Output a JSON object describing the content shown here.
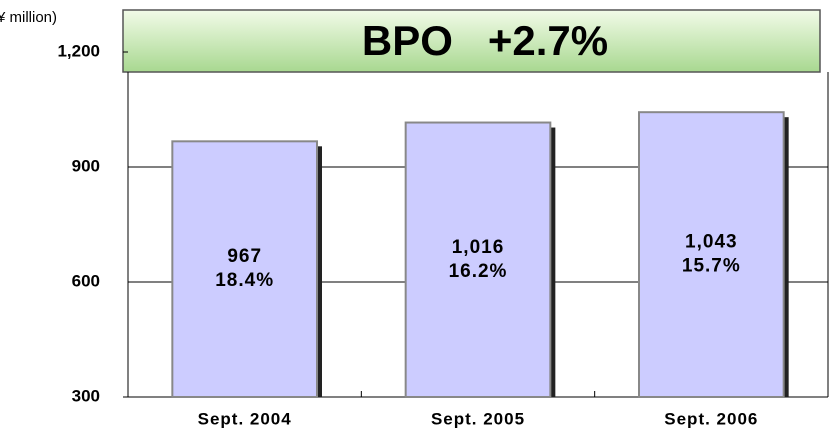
{
  "chart_data": {
    "type": "bar",
    "title": "BPO   +2.7%",
    "y_unit": "(¥ million)",
    "categories": [
      "Sept. 2004",
      "Sept. 2005",
      "Sept. 2006"
    ],
    "values": [
      967,
      1016,
      1043
    ],
    "value_labels": [
      "967",
      "1,016",
      "1,043"
    ],
    "growth_labels": [
      "18.4%",
      "16.2%",
      "15.7%"
    ],
    "color": "#ccccff",
    "ylim": [
      300,
      1200
    ],
    "yticks": [
      300,
      600,
      900,
      {
        "value": 1200,
        "label": "1,200"
      }
    ],
    "grid": true
  }
}
